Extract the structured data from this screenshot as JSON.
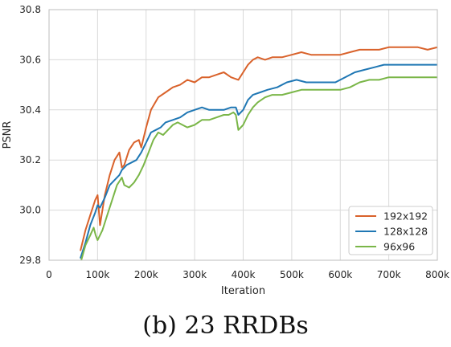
{
  "caption": "(b) 23 RRDBs",
  "chart_data": {
    "type": "line",
    "xlabel": "Iteration",
    "ylabel": "PSNR",
    "xlim": [
      0,
      800000
    ],
    "ylim": [
      29.8,
      30.8
    ],
    "xticks": [
      0,
      100000,
      200000,
      300000,
      400000,
      500000,
      600000,
      700000,
      800000
    ],
    "xtick_labels": [
      "0",
      "100k",
      "200k",
      "300k",
      "400k",
      "500k",
      "600k",
      "700k",
      "800k"
    ],
    "yticks": [
      29.8,
      30.0,
      30.2,
      30.4,
      30.6,
      30.8
    ],
    "ytick_labels": [
      "29.8",
      "30.0",
      "30.2",
      "30.4",
      "30.6",
      "30.8"
    ],
    "grid": true,
    "legend_position": "lower-right",
    "series": [
      {
        "name": "192x192",
        "color": "#d9622b",
        "x": [
          65000,
          75000,
          85000,
          95000,
          100000,
          105000,
          115000,
          125000,
          135000,
          145000,
          150000,
          155000,
          165000,
          175000,
          185000,
          190000,
          200000,
          210000,
          225000,
          240000,
          255000,
          270000,
          285000,
          300000,
          315000,
          330000,
          345000,
          360000,
          375000,
          390000,
          400000,
          410000,
          420000,
          430000,
          445000,
          460000,
          480000,
          500000,
          520000,
          540000,
          560000,
          580000,
          600000,
          620000,
          640000,
          660000,
          680000,
          700000,
          720000,
          740000,
          760000,
          780000,
          800000
        ],
        "y": [
          29.84,
          29.92,
          29.98,
          30.04,
          30.06,
          29.94,
          30.06,
          30.14,
          30.2,
          30.23,
          30.17,
          30.18,
          30.24,
          30.27,
          30.28,
          30.25,
          30.33,
          30.4,
          30.45,
          30.47,
          30.49,
          30.5,
          30.52,
          30.51,
          30.53,
          30.53,
          30.54,
          30.55,
          30.53,
          30.52,
          30.55,
          30.58,
          30.6,
          30.61,
          30.6,
          30.61,
          30.61,
          30.62,
          30.63,
          30.62,
          30.62,
          30.62,
          30.62,
          30.63,
          30.64,
          30.64,
          30.64,
          30.65,
          30.65,
          30.65,
          30.65,
          30.64,
          30.65
        ]
      },
      {
        "name": "128x128",
        "color": "#1f77b4",
        "x": [
          65000,
          75000,
          85000,
          95000,
          100000,
          105000,
          115000,
          125000,
          135000,
          145000,
          150000,
          160000,
          170000,
          180000,
          190000,
          200000,
          210000,
          220000,
          230000,
          240000,
          255000,
          270000,
          285000,
          300000,
          315000,
          330000,
          345000,
          360000,
          375000,
          385000,
          390000,
          400000,
          410000,
          420000,
          435000,
          450000,
          470000,
          490000,
          510000,
          530000,
          550000,
          570000,
          590000,
          610000,
          630000,
          650000,
          670000,
          690000,
          710000,
          730000,
          750000,
          770000,
          790000,
          800000
        ],
        "y": [
          29.81,
          29.87,
          29.94,
          29.99,
          30.02,
          30.01,
          30.05,
          30.1,
          30.12,
          30.14,
          30.16,
          30.18,
          30.19,
          30.2,
          30.23,
          30.27,
          30.31,
          30.32,
          30.33,
          30.35,
          30.36,
          30.37,
          30.39,
          30.4,
          30.41,
          30.4,
          30.4,
          30.4,
          30.41,
          30.41,
          30.38,
          30.4,
          30.44,
          30.46,
          30.47,
          30.48,
          30.49,
          30.51,
          30.52,
          30.51,
          30.51,
          30.51,
          30.51,
          30.53,
          30.55,
          30.56,
          30.57,
          30.58,
          30.58,
          30.58,
          30.58,
          30.58,
          30.58,
          30.58
        ]
      },
      {
        "name": "96x96",
        "color": "#7ab648",
        "x": [
          65000,
          75000,
          85000,
          92000,
          96000,
          100000,
          110000,
          120000,
          130000,
          140000,
          150000,
          155000,
          165000,
          175000,
          185000,
          195000,
          205000,
          215000,
          225000,
          235000,
          245000,
          255000,
          265000,
          275000,
          285000,
          300000,
          315000,
          330000,
          345000,
          360000,
          370000,
          380000,
          385000,
          390000,
          400000,
          410000,
          420000,
          430000,
          445000,
          460000,
          480000,
          500000,
          520000,
          540000,
          560000,
          580000,
          600000,
          620000,
          640000,
          660000,
          680000,
          700000,
          720000,
          740000,
          760000,
          780000,
          800000
        ],
        "y": [
          29.79,
          29.86,
          29.9,
          29.93,
          29.9,
          29.88,
          29.92,
          29.98,
          30.04,
          30.1,
          30.13,
          30.1,
          30.09,
          30.11,
          30.14,
          30.18,
          30.23,
          30.28,
          30.31,
          30.3,
          30.32,
          30.34,
          30.35,
          30.34,
          30.33,
          30.34,
          30.36,
          30.36,
          30.37,
          30.38,
          30.38,
          30.39,
          30.38,
          30.32,
          30.34,
          30.38,
          30.41,
          30.43,
          30.45,
          30.46,
          30.46,
          30.47,
          30.48,
          30.48,
          30.48,
          30.48,
          30.48,
          30.49,
          30.51,
          30.52,
          30.52,
          30.53,
          30.53,
          30.53,
          30.53,
          30.53,
          30.53
        ]
      }
    ]
  }
}
